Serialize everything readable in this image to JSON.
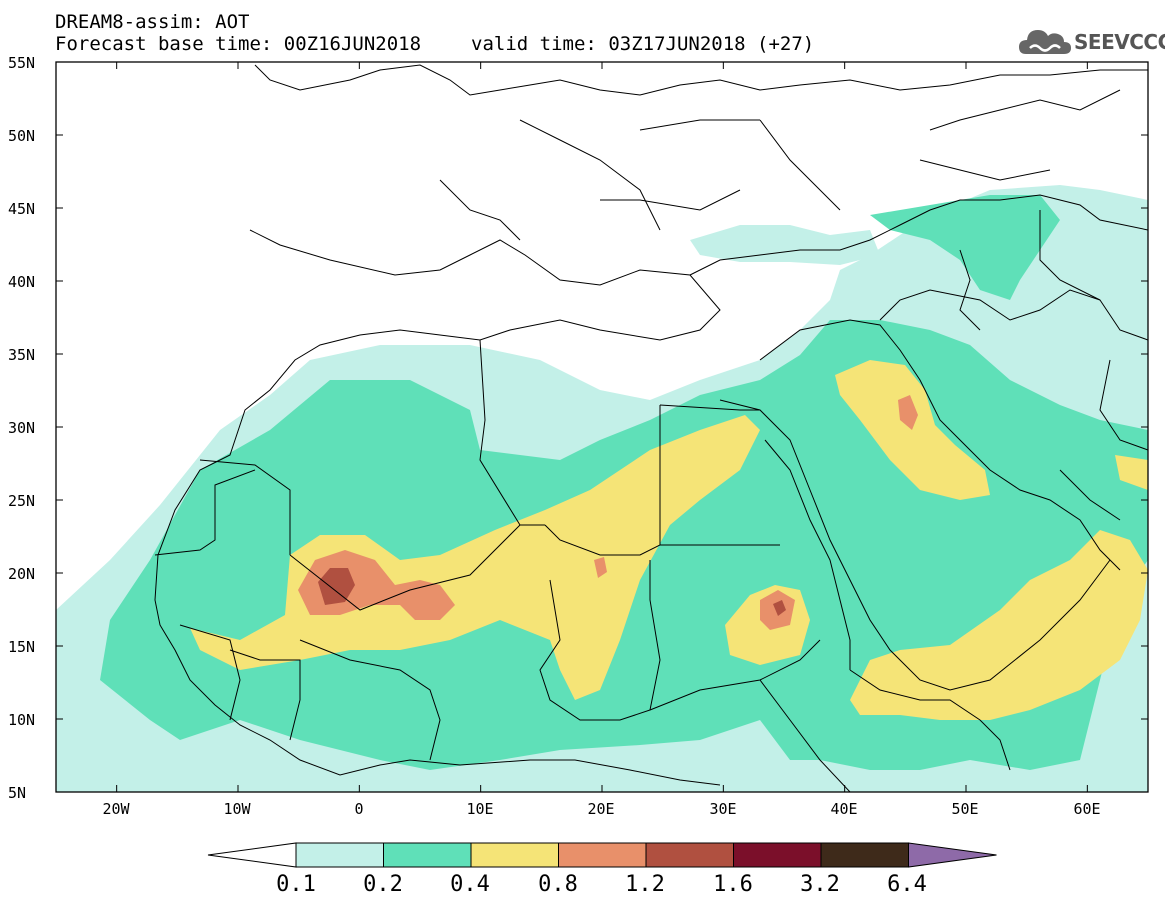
{
  "header": {
    "title": "DREAM8-assim: AOT",
    "base_time": "Forecast base time: 00Z16JUN2018",
    "valid_time": "valid time: 03Z17JUN2018 (+27)"
  },
  "logo": {
    "text": "SEEVCCC",
    "icon": "cloud-icon"
  },
  "axes": {
    "lat_labels": [
      "55N",
      "50N",
      "45N",
      "40N",
      "35N",
      "30N",
      "25N",
      "20N",
      "15N",
      "10N",
      "5N"
    ],
    "lat_values": [
      55,
      50,
      45,
      40,
      35,
      30,
      25,
      20,
      15,
      10,
      5
    ],
    "lon_labels": [
      "20W",
      "10W",
      "0",
      "10E",
      "20E",
      "30E",
      "40E",
      "50E",
      "60E"
    ],
    "lon_values": [
      -20,
      -10,
      0,
      10,
      20,
      30,
      40,
      50,
      60
    ],
    "lon_range": [
      -25,
      65
    ],
    "lat_range": [
      5,
      55
    ]
  },
  "colorbar": {
    "labels": [
      "0.1",
      "0.2",
      "0.4",
      "0.8",
      "1.2",
      "1.6",
      "3.2",
      "6.4"
    ],
    "colors": [
      "#ffffff",
      "#c3f0e8",
      "#5fe0b8",
      "#f5e477",
      "#e8906a",
      "#b05040",
      "#7b0f2a",
      "#3e2a1a",
      "#8e6aa8"
    ]
  },
  "levels": {
    "white": "#ffffff",
    "l1": "#c3f0e8",
    "l2": "#5fe0b8",
    "l3": "#f5e477",
    "l4": "#e8906a",
    "l5": "#b05040"
  }
}
